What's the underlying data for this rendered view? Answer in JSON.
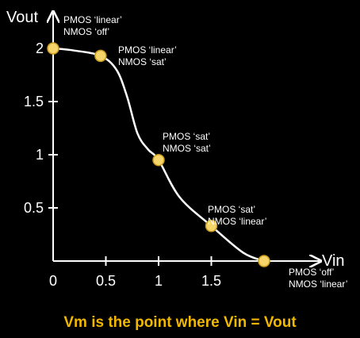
{
  "chart_data": {
    "type": "line",
    "xlabel": "Vin",
    "ylabel": "Vout",
    "xlim": [
      0,
      2.1
    ],
    "ylim": [
      0,
      2.2
    ],
    "x_ticks": [
      "0",
      "0.5",
      "1",
      "1.5"
    ],
    "x_tick_values": [
      0,
      0.5,
      1,
      1.5
    ],
    "y_ticks": [
      "0.5",
      "1",
      "1.5",
      "2"
    ],
    "y_tick_values": [
      0.5,
      1,
      1.5,
      2
    ],
    "curve": {
      "x": [
        0,
        0.2,
        0.45,
        0.6,
        0.7,
        0.8,
        0.9,
        1.0,
        1.2,
        1.5,
        1.8,
        2.0
      ],
      "y": [
        2.0,
        1.98,
        1.93,
        1.8,
        1.55,
        1.2,
        1.05,
        0.95,
        0.6,
        0.33,
        0.08,
        0.0
      ]
    },
    "points": [
      {
        "x": 0,
        "y": 2.0,
        "line1": "PMOS ‘linear’",
        "line2": "NMOS ‘off’"
      },
      {
        "x": 0.45,
        "y": 1.93,
        "line1": "PMOS ‘linear’",
        "line2": "NMOS ‘sat’"
      },
      {
        "x": 1.0,
        "y": 0.95,
        "line1": "PMOS ‘sat’",
        "line2": "NMOS ‘sat’"
      },
      {
        "x": 1.5,
        "y": 0.33,
        "line1": "PMOS ‘sat’",
        "line2": "NMOS ‘linear’"
      },
      {
        "x": 2.0,
        "y": 0.0,
        "line1": "PMOS ‘off’",
        "line2": "NMOS ‘linear’"
      }
    ],
    "caption": "Vm is the point where Vin = Vout",
    "colors": {
      "axis": "#ffffff",
      "curve": "#ffffff",
      "point_fill": "#f5d46a",
      "point_stroke": "#c89b1e",
      "caption": "#f2b701"
    }
  }
}
